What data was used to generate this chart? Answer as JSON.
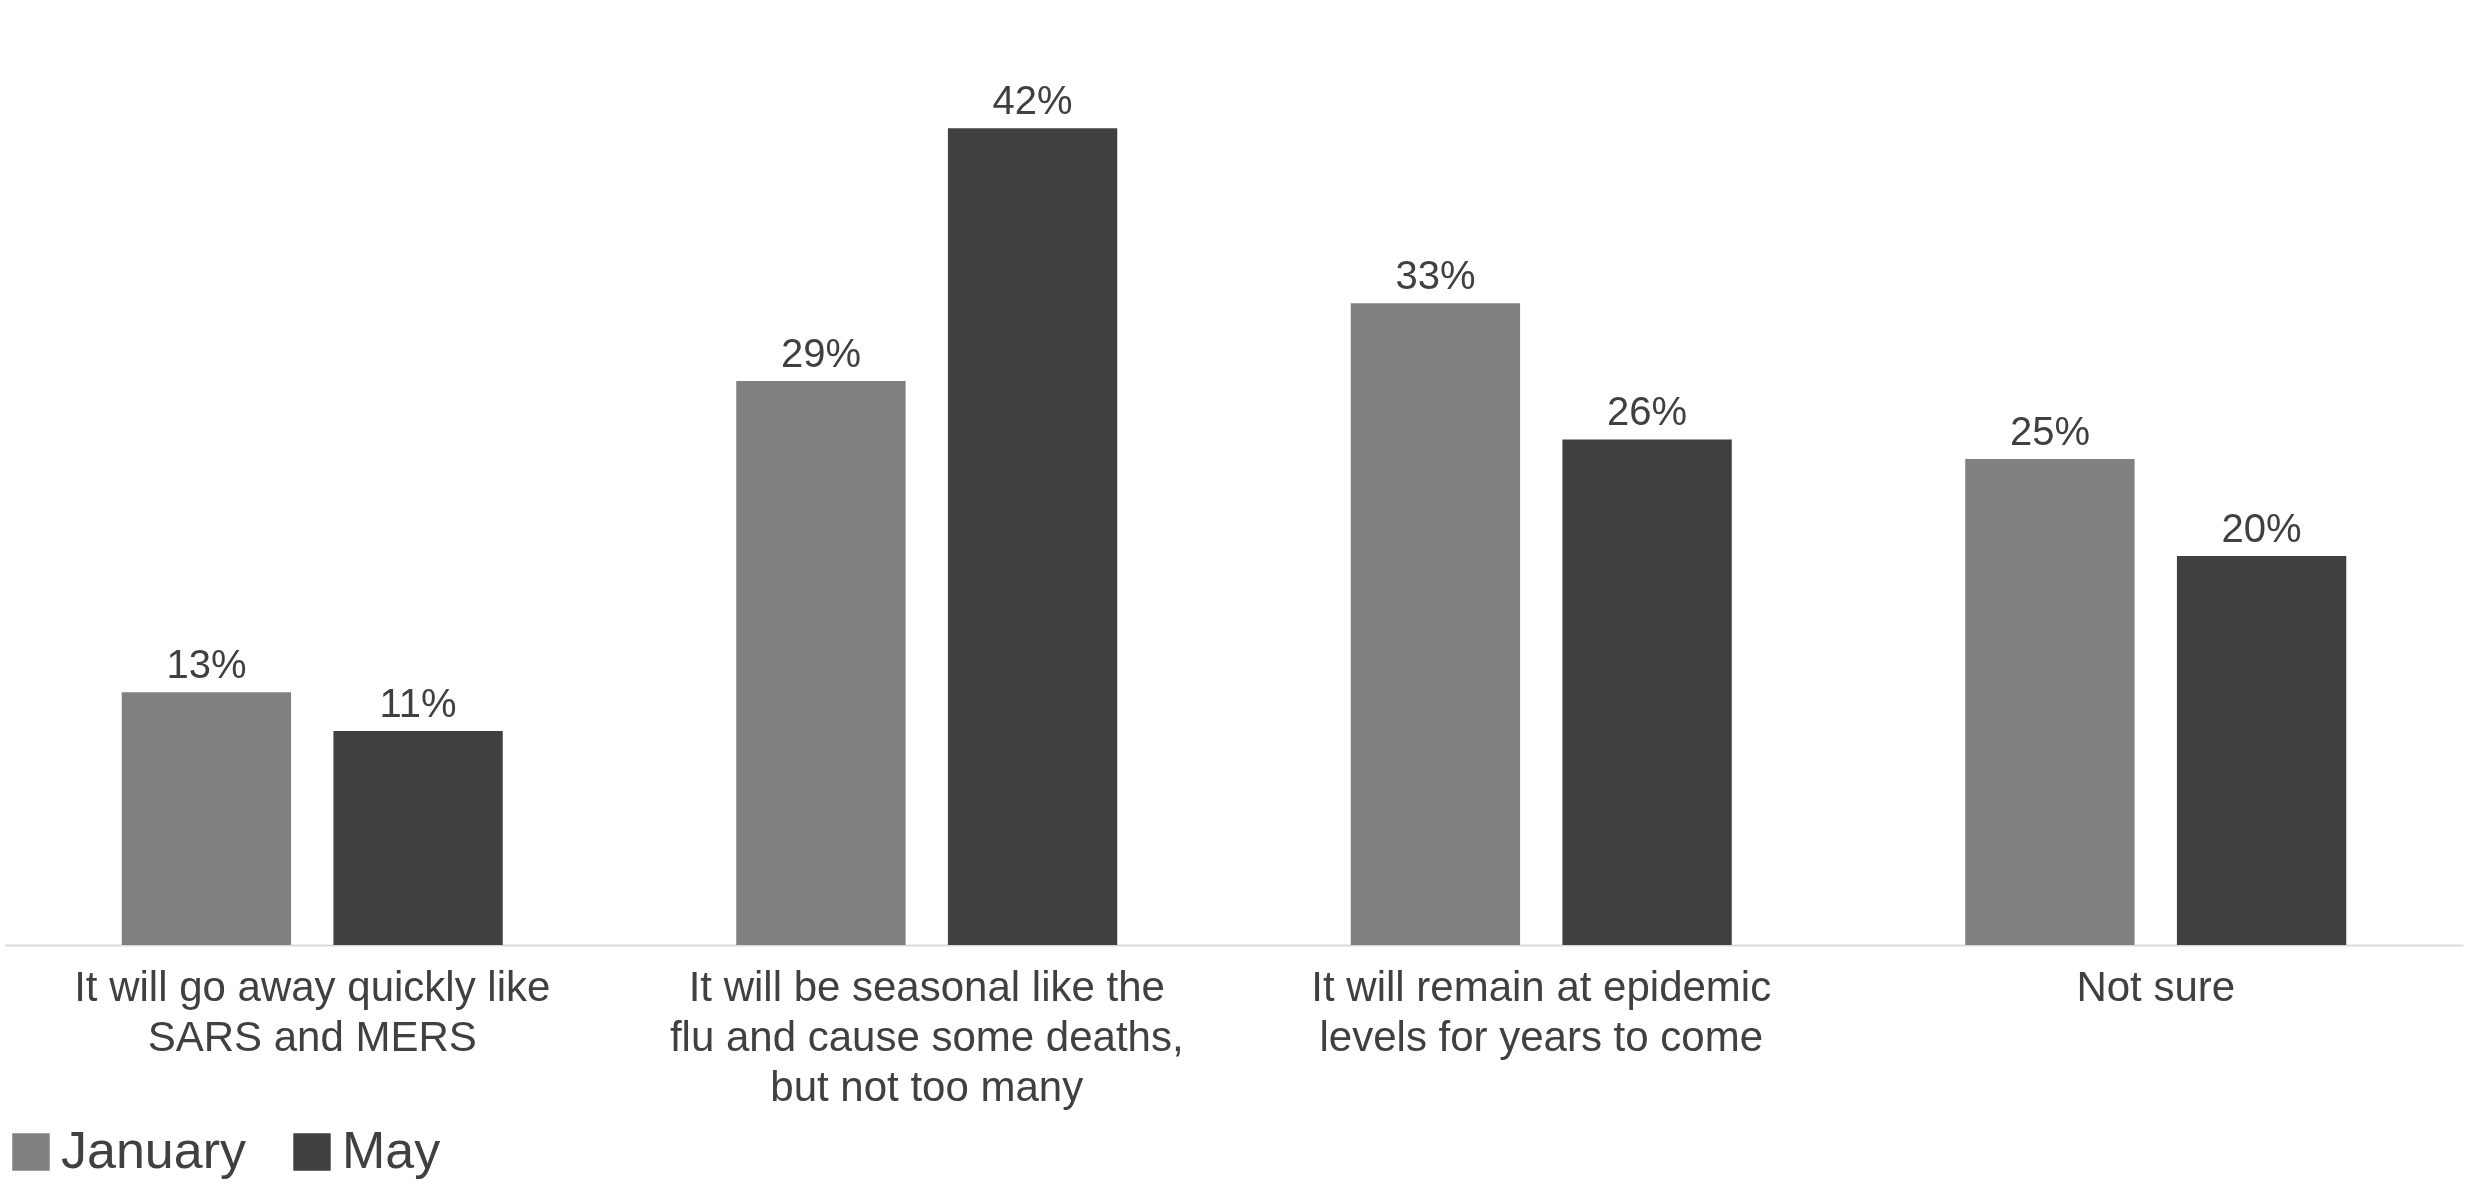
{
  "chart_data": {
    "type": "bar",
    "categories": [
      "It will go away quickly like SARS and MERS",
      "It will be seasonal like the flu and cause some deaths, but not too many",
      "It will remain at epidemic levels for years to come",
      "Not sure"
    ],
    "series": [
      {
        "name": "January",
        "color": "#808080",
        "values": [
          13,
          29,
          33,
          25
        ],
        "value_labels": [
          "13%",
          "29%",
          "33%",
          "25%"
        ]
      },
      {
        "name": "May",
        "color": "#404040",
        "values": [
          11,
          42,
          26,
          20
        ],
        "value_labels": [
          "11%",
          "42%",
          "26%",
          "20%"
        ]
      }
    ],
    "legend": "bottom",
    "grid": false
  }
}
